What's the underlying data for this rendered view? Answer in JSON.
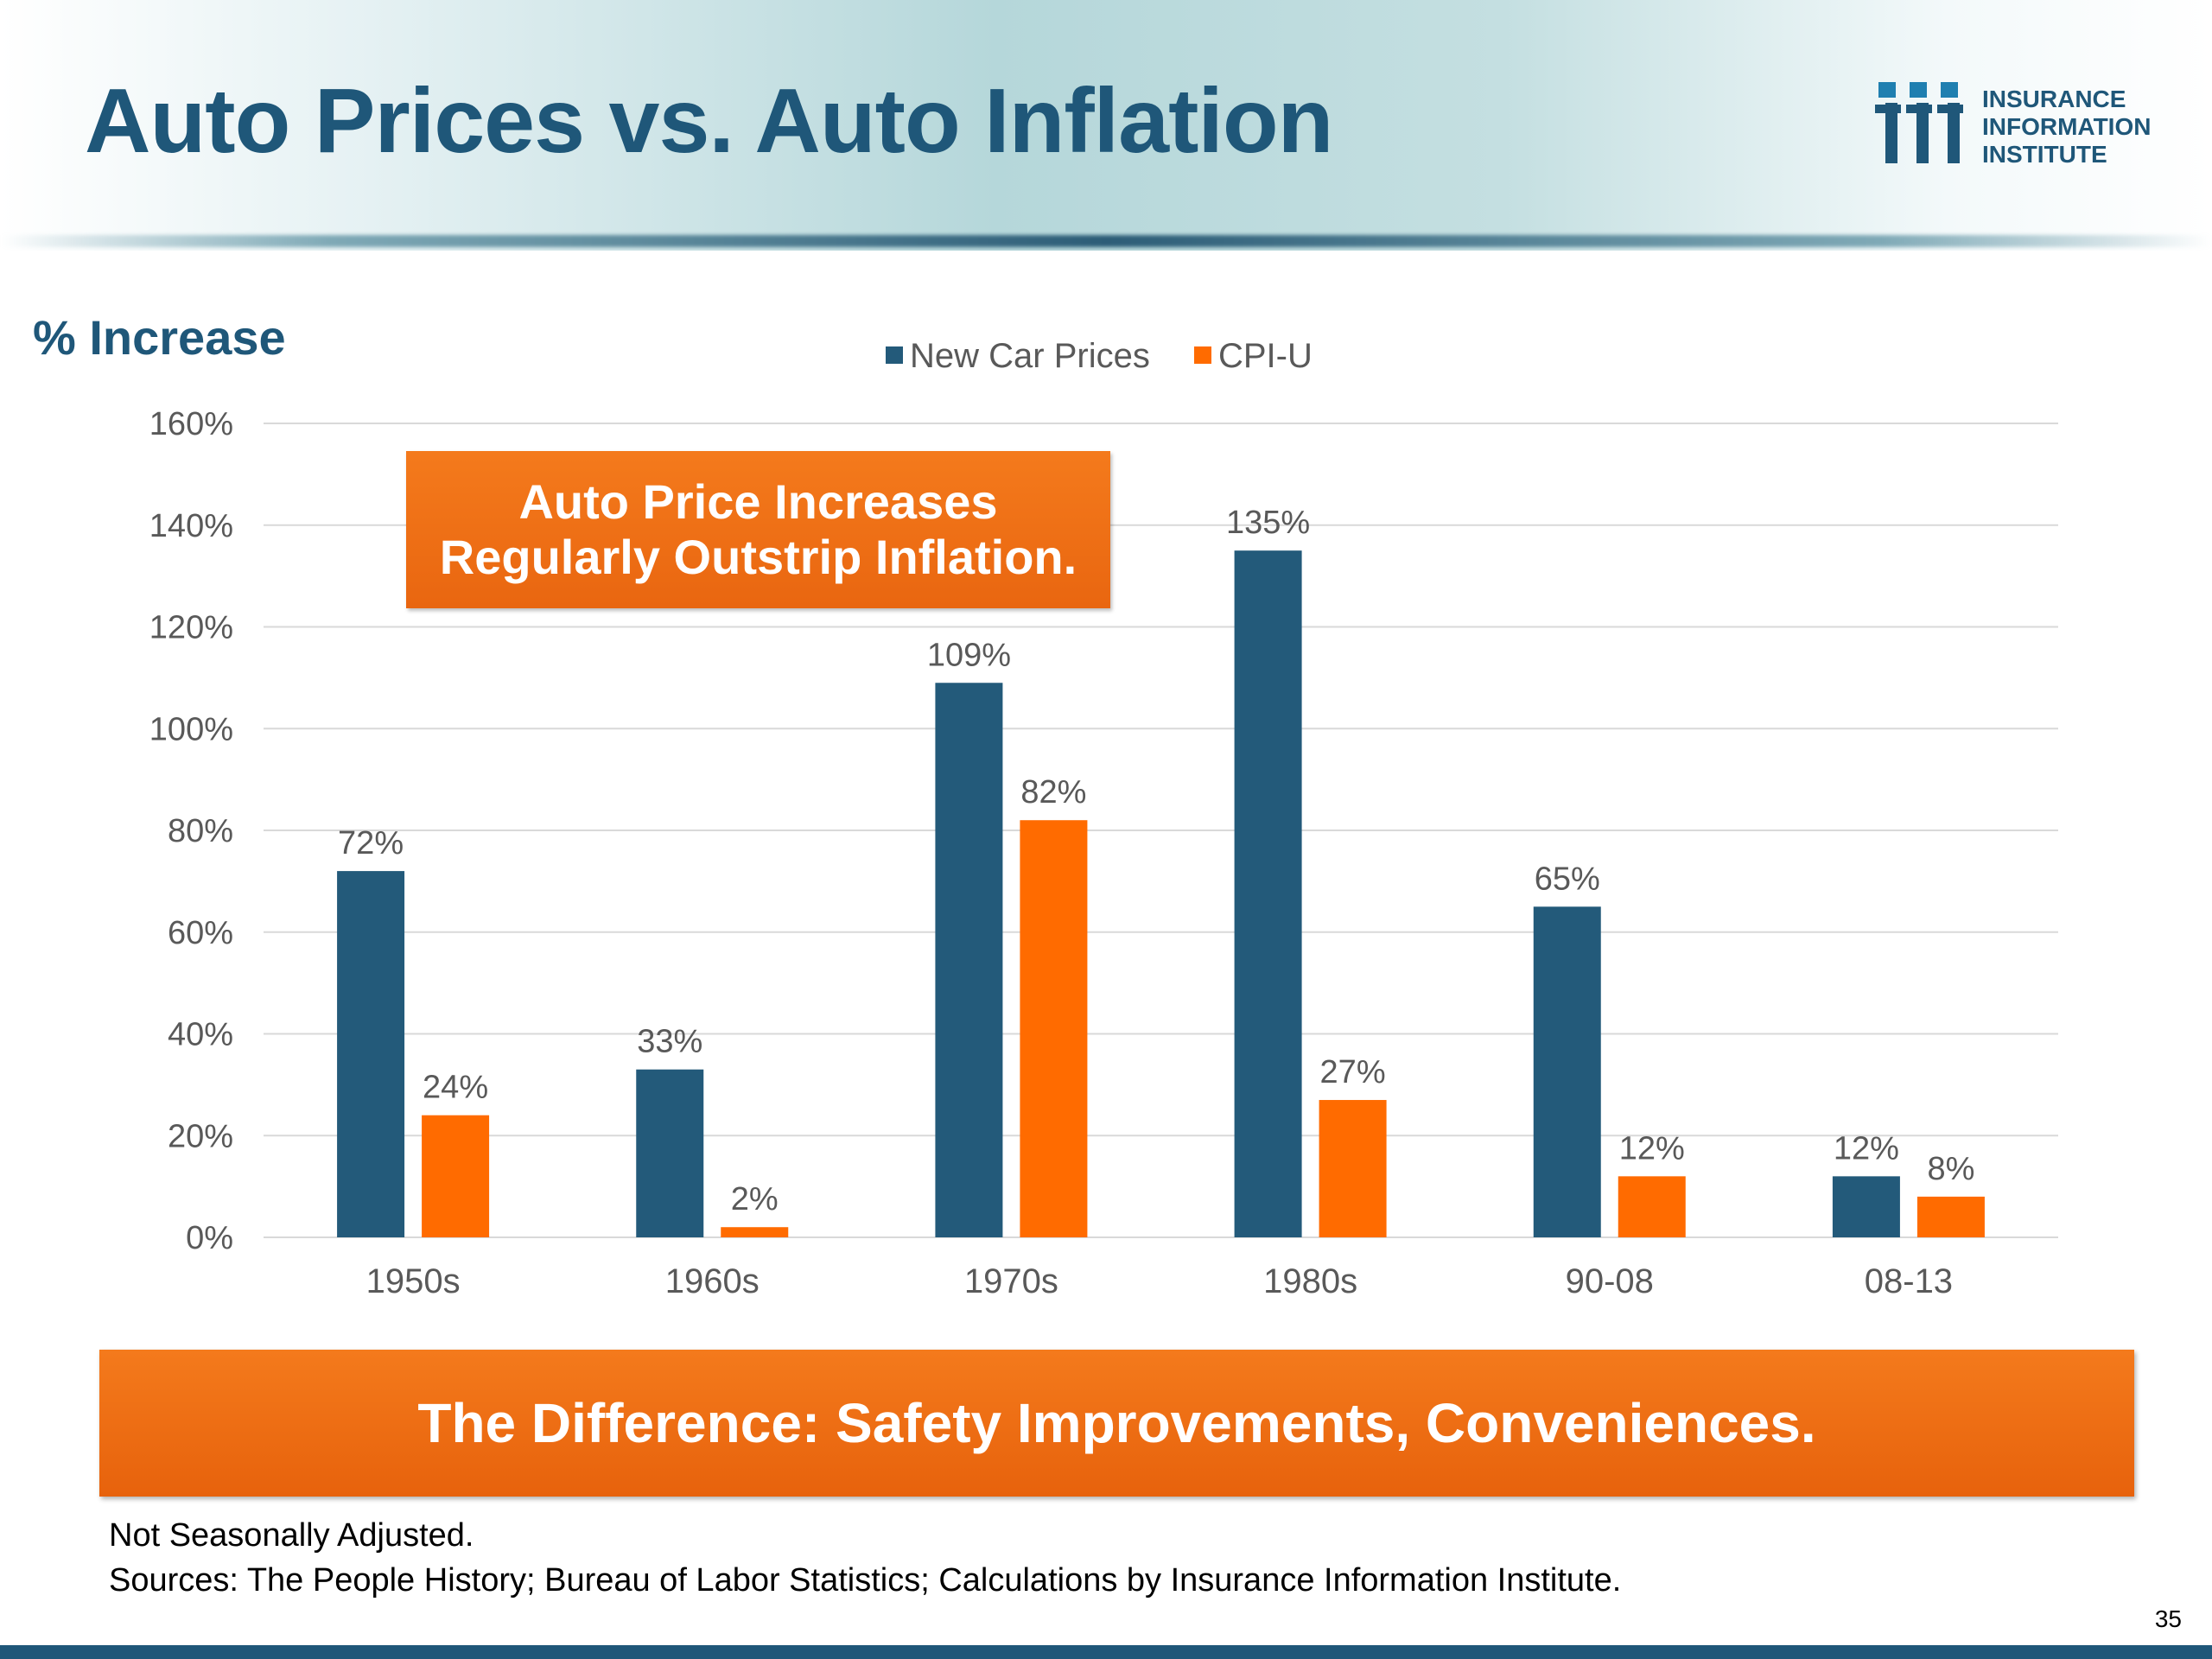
{
  "slide": {
    "title": "Auto Prices vs. Auto Inflation",
    "logo_lines": [
      "INSURANCE",
      "INFORMATION",
      "INSTITUTE"
    ],
    "callout_lines": [
      "Auto Price Increases",
      "Regularly Outstrip Inflation."
    ],
    "banner": "The Difference: Safety Improvements, Conveniences.",
    "footnote_1": "Not Seasonally Adjusted.",
    "footnote_2": "Sources: The People History; Bureau of Labor Statistics; Calculations by Insurance Information Institute.",
    "page_number": "35",
    "colors": {
      "title": "#1f5779",
      "accent_orange": "#ff6b00",
      "series_blue": "#235a7a"
    }
  },
  "chart_data": {
    "type": "bar",
    "title": "",
    "ylabel": "% Increase",
    "xlabel": "",
    "categories": [
      "1950s",
      "1960s",
      "1970s",
      "1980s",
      "90-08",
      "08-13"
    ],
    "series": [
      {
        "name": "New Car Prices",
        "color": "#235a7a",
        "values": [
          72,
          33,
          109,
          135,
          65,
          12
        ],
        "labels": [
          "72%",
          "33%",
          "109%",
          "135%",
          "65%",
          "12%"
        ]
      },
      {
        "name": "CPI-U",
        "color": "#ff6b00",
        "values": [
          24,
          2,
          82,
          27,
          12,
          8
        ],
        "labels": [
          "24%",
          "2%",
          "82%",
          "27%",
          "12%",
          "8%"
        ]
      }
    ],
    "ylim": [
      0,
      160
    ],
    "yticks": [
      "0%",
      "20%",
      "40%",
      "60%",
      "80%",
      "100%",
      "120%",
      "140%",
      "160%"
    ],
    "grid": true,
    "legend_position": "top-center"
  }
}
